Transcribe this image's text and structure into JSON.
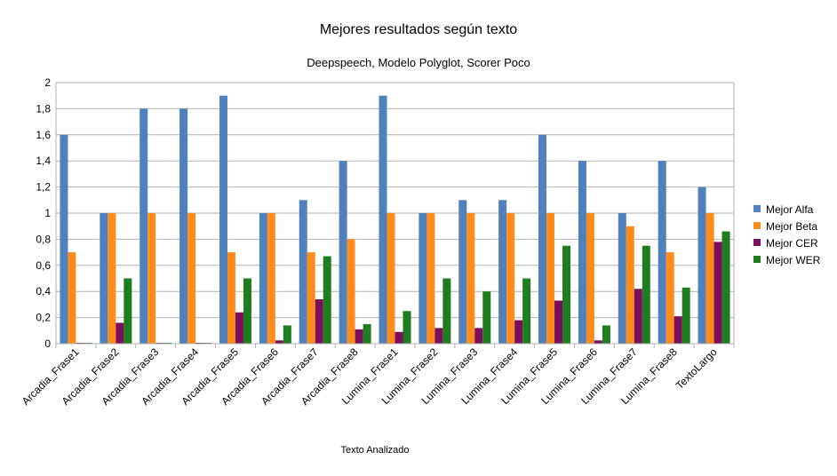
{
  "chart_data": {
    "type": "bar",
    "title": "Mejores resultados según texto",
    "subtitle": "Deepspeech, Modelo Polyglot, Scorer Poco",
    "xlabel": "Texto Analizado",
    "ylabel": "",
    "ylim": [
      0,
      2
    ],
    "ytick_step": 0.2,
    "grid": true,
    "legend_position": "right",
    "categories": [
      "Arcadia_Frase1",
      "Arcadia_Frase2",
      "Arcadia_Frase3",
      "Arcadia_Frase4",
      "Arcadia_Frase5",
      "Arcadia_Frase6",
      "Arcadia_Frase7",
      "Arcadia_Frase8",
      "Lumina_Frase1",
      "Lumina_Frase2",
      "Lumina_Frase3",
      "Lumina_Frase4",
      "Lumina_Frase5",
      "Lumina_Frase6",
      "Lumina_Frase7",
      "Lumina_Frase8",
      "TextoLargo"
    ],
    "series": [
      {
        "name": "Mejor Alfa",
        "color": "#4f81bd",
        "values": [
          1.6,
          1.0,
          1.8,
          1.8,
          1.9,
          1.0,
          1.1,
          1.4,
          1.9,
          1.0,
          1.1,
          1.1,
          1.6,
          1.4,
          1.0,
          1.4,
          1.2
        ]
      },
      {
        "name": "Mejor Beta",
        "color": "#ff8c1a",
        "values": [
          0.7,
          1.0,
          1.0,
          1.0,
          0.7,
          1.0,
          0.7,
          0.8,
          1.0,
          1.0,
          1.0,
          1.0,
          1.0,
          1.0,
          0.9,
          0.7,
          1.0
        ]
      },
      {
        "name": "Mejor CER",
        "color": "#7b0f5e",
        "values": [
          0.005,
          0.16,
          0.005,
          0.005,
          0.24,
          0.025,
          0.34,
          0.11,
          0.09,
          0.12,
          0.12,
          0.18,
          0.33,
          0.025,
          0.42,
          0.21,
          0.78
        ]
      },
      {
        "name": "Mejor WER",
        "color": "#1e7d1e",
        "values": [
          0.005,
          0.5,
          0.005,
          0.005,
          0.5,
          0.14,
          0.67,
          0.15,
          0.25,
          0.5,
          0.4,
          0.5,
          0.75,
          0.14,
          0.75,
          0.43,
          0.86
        ]
      }
    ]
  }
}
